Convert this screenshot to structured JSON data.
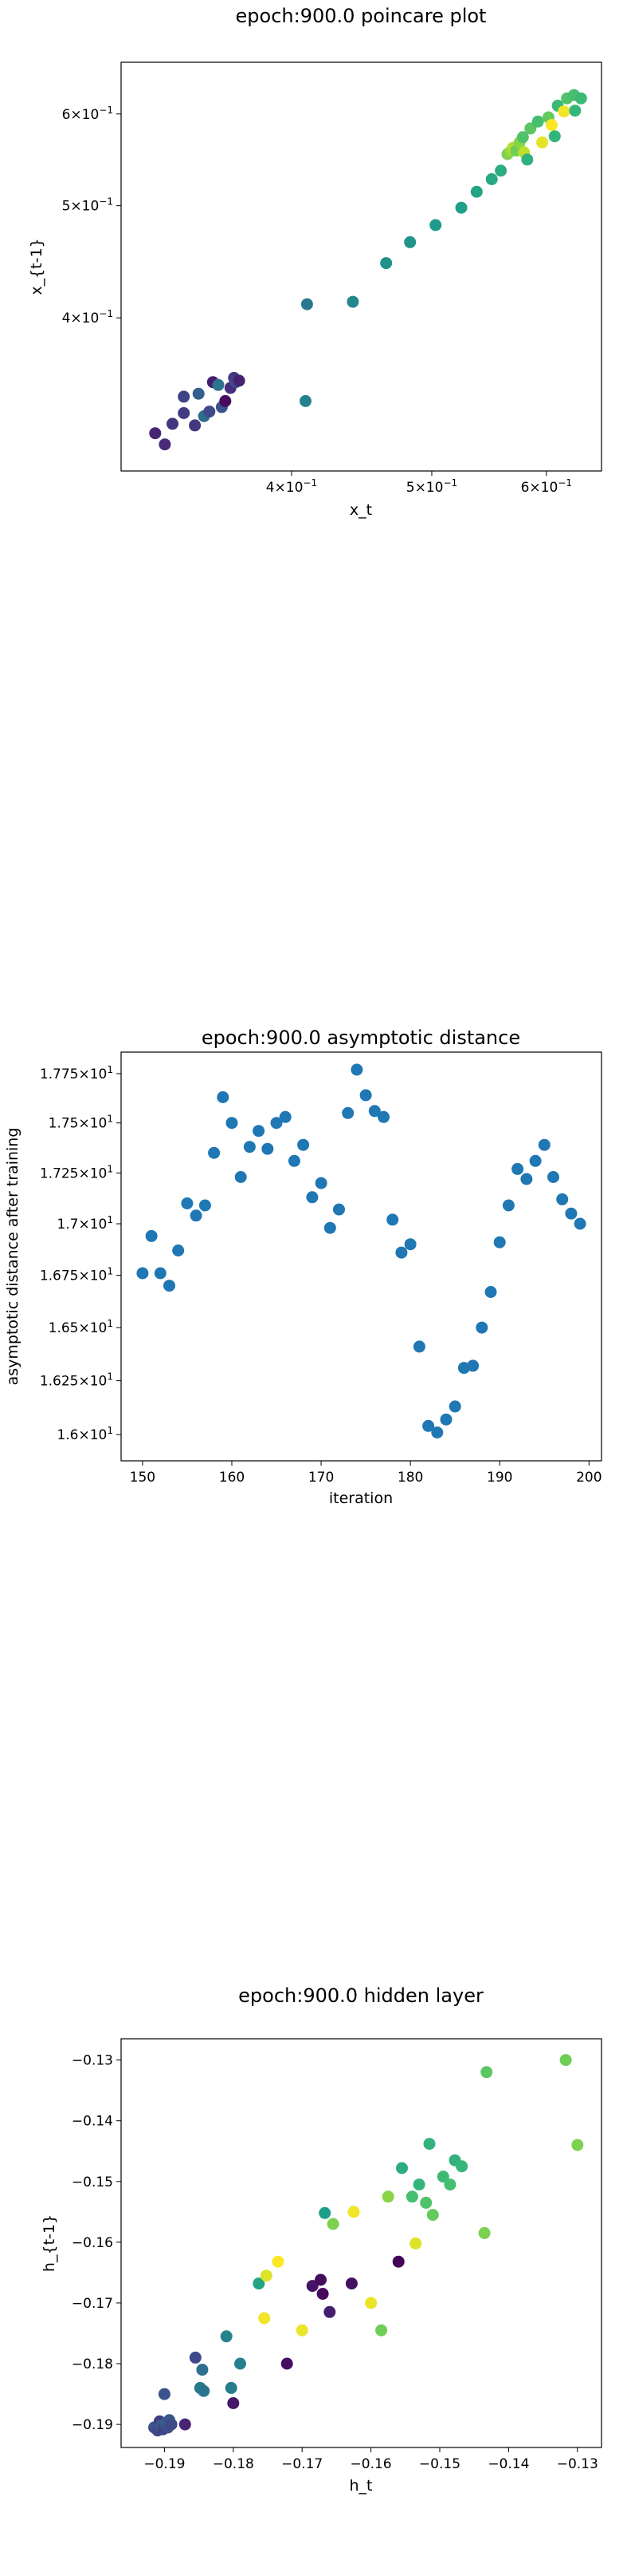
{
  "chart_data": [
    {
      "type": "scatter",
      "title": "epoch:900.0 poincare plot",
      "xlabel": "x_t",
      "ylabel": "x_{t-1}",
      "xscale": "log",
      "yscale": "log",
      "xlim": [
        0.305,
        0.655
      ],
      "ylim": [
        0.295,
        0.665
      ],
      "xticks": [
        {
          "v": 0.4,
          "m": "4",
          "e": "−1"
        },
        {
          "v": 0.5,
          "m": "5",
          "e": "−1"
        },
        {
          "v": 0.6,
          "m": "6",
          "e": "−1"
        }
      ],
      "yticks": [
        {
          "v": 0.4,
          "m": "4",
          "e": "−1"
        },
        {
          "v": 0.5,
          "m": "5",
          "e": "−1"
        },
        {
          "v": 0.6,
          "m": "6",
          "e": "−1"
        }
      ],
      "colormap": "viridis",
      "points": [
        {
          "x": 0.322,
          "y": 0.318,
          "c": 0.1
        },
        {
          "x": 0.327,
          "y": 0.311,
          "c": 0.12
        },
        {
          "x": 0.331,
          "y": 0.324,
          "c": 0.15
        },
        {
          "x": 0.337,
          "y": 0.331,
          "c": 0.18
        },
        {
          "x": 0.337,
          "y": 0.342,
          "c": 0.2
        },
        {
          "x": 0.343,
          "y": 0.323,
          "c": 0.16
        },
        {
          "x": 0.345,
          "y": 0.344,
          "c": 0.3
        },
        {
          "x": 0.348,
          "y": 0.329,
          "c": 0.35
        },
        {
          "x": 0.351,
          "y": 0.332,
          "c": 0.22
        },
        {
          "x": 0.353,
          "y": 0.352,
          "c": 0.08
        },
        {
          "x": 0.356,
          "y": 0.35,
          "c": 0.38
        },
        {
          "x": 0.358,
          "y": 0.335,
          "c": 0.26
        },
        {
          "x": 0.36,
          "y": 0.339,
          "c": 0.03
        },
        {
          "x": 0.363,
          "y": 0.348,
          "c": 0.13
        },
        {
          "x": 0.365,
          "y": 0.355,
          "c": 0.17
        },
        {
          "x": 0.366,
          "y": 0.352,
          "c": 0.22
        },
        {
          "x": 0.368,
          "y": 0.353,
          "c": 0.09
        },
        {
          "x": 0.41,
          "y": 0.411,
          "c": 0.4
        },
        {
          "x": 0.409,
          "y": 0.339,
          "c": 0.44
        },
        {
          "x": 0.441,
          "y": 0.413,
          "c": 0.46
        },
        {
          "x": 0.465,
          "y": 0.446,
          "c": 0.5
        },
        {
          "x": 0.483,
          "y": 0.465,
          "c": 0.52
        },
        {
          "x": 0.503,
          "y": 0.481,
          "c": 0.54
        },
        {
          "x": 0.524,
          "y": 0.498,
          "c": 0.56
        },
        {
          "x": 0.537,
          "y": 0.514,
          "c": 0.58
        },
        {
          "x": 0.55,
          "y": 0.527,
          "c": 0.6
        },
        {
          "x": 0.558,
          "y": 0.536,
          "c": 0.62
        },
        {
          "x": 0.564,
          "y": 0.554,
          "c": 0.8
        },
        {
          "x": 0.567,
          "y": 0.557,
          "c": 0.84
        },
        {
          "x": 0.569,
          "y": 0.561,
          "c": 0.88
        },
        {
          "x": 0.572,
          "y": 0.558,
          "c": 0.78
        },
        {
          "x": 0.575,
          "y": 0.567,
          "c": 0.82
        },
        {
          "x": 0.578,
          "y": 0.573,
          "c": 0.72
        },
        {
          "x": 0.579,
          "y": 0.556,
          "c": 0.9
        },
        {
          "x": 0.582,
          "y": 0.548,
          "c": 0.64
        },
        {
          "x": 0.585,
          "y": 0.583,
          "c": 0.74
        },
        {
          "x": 0.592,
          "y": 0.591,
          "c": 0.7
        },
        {
          "x": 0.596,
          "y": 0.567,
          "c": 0.96
        },
        {
          "x": 0.602,
          "y": 0.596,
          "c": 0.76
        },
        {
          "x": 0.605,
          "y": 0.587,
          "c": 1.0
        },
        {
          "x": 0.608,
          "y": 0.574,
          "c": 0.66
        },
        {
          "x": 0.611,
          "y": 0.61,
          "c": 0.68
        },
        {
          "x": 0.617,
          "y": 0.603,
          "c": 0.98
        },
        {
          "x": 0.62,
          "y": 0.619,
          "c": 0.72
        },
        {
          "x": 0.627,
          "y": 0.623,
          "c": 0.7
        },
        {
          "x": 0.628,
          "y": 0.604,
          "c": 0.66
        },
        {
          "x": 0.634,
          "y": 0.619,
          "c": 0.68
        }
      ]
    },
    {
      "type": "scatter",
      "title": "epoch:900.0 asymptotic distance",
      "xlabel": "iteration",
      "ylabel": "asymptotic distance after training",
      "yscale": "log",
      "xlim": [
        147.6,
        201.4
      ],
      "ylim": [
        15.88,
        17.86
      ],
      "color": "#1f77b4",
      "xticks": [
        {
          "v": 150,
          "t": "150"
        },
        {
          "v": 160,
          "t": "160"
        },
        {
          "v": 170,
          "t": "170"
        },
        {
          "v": 180,
          "t": "180"
        },
        {
          "v": 190,
          "t": "190"
        },
        {
          "v": 200,
          "t": "200"
        }
      ],
      "yticks": [
        {
          "v": 16.0,
          "m": "1.6",
          "e": "1"
        },
        {
          "v": 16.25,
          "m": "1.625",
          "e": "1"
        },
        {
          "v": 16.5,
          "m": "1.65",
          "e": "1"
        },
        {
          "v": 16.75,
          "m": "1.675",
          "e": "1"
        },
        {
          "v": 17.0,
          "m": "1.7",
          "e": "1"
        },
        {
          "v": 17.25,
          "m": "1.725",
          "e": "1"
        },
        {
          "v": 17.5,
          "m": "1.75",
          "e": "1"
        },
        {
          "v": 17.75,
          "m": "1.775",
          "e": "1"
        }
      ],
      "points": [
        {
          "x": 150,
          "y": 16.76
        },
        {
          "x": 151,
          "y": 16.94
        },
        {
          "x": 152,
          "y": 16.76
        },
        {
          "x": 153,
          "y": 16.7
        },
        {
          "x": 154,
          "y": 16.87
        },
        {
          "x": 155,
          "y": 17.1
        },
        {
          "x": 156,
          "y": 17.04
        },
        {
          "x": 157,
          "y": 17.09
        },
        {
          "x": 158,
          "y": 17.35
        },
        {
          "x": 159,
          "y": 17.63
        },
        {
          "x": 160,
          "y": 17.5
        },
        {
          "x": 161,
          "y": 17.23
        },
        {
          "x": 162,
          "y": 17.38
        },
        {
          "x": 163,
          "y": 17.46
        },
        {
          "x": 164,
          "y": 17.37
        },
        {
          "x": 165,
          "y": 17.5
        },
        {
          "x": 166,
          "y": 17.53
        },
        {
          "x": 167,
          "y": 17.31
        },
        {
          "x": 168,
          "y": 17.39
        },
        {
          "x": 169,
          "y": 17.13
        },
        {
          "x": 170,
          "y": 17.2
        },
        {
          "x": 171,
          "y": 16.98
        },
        {
          "x": 172,
          "y": 17.07
        },
        {
          "x": 173,
          "y": 17.55
        },
        {
          "x": 174,
          "y": 17.77
        },
        {
          "x": 175,
          "y": 17.64
        },
        {
          "x": 176,
          "y": 17.56
        },
        {
          "x": 177,
          "y": 17.53
        },
        {
          "x": 178,
          "y": 17.02
        },
        {
          "x": 179,
          "y": 16.86
        },
        {
          "x": 180,
          "y": 16.9
        },
        {
          "x": 181,
          "y": 16.41
        },
        {
          "x": 182,
          "y": 16.04
        },
        {
          "x": 183,
          "y": 16.01
        },
        {
          "x": 184,
          "y": 16.07
        },
        {
          "x": 185,
          "y": 16.13
        },
        {
          "x": 186,
          "y": 16.31
        },
        {
          "x": 187,
          "y": 16.32
        },
        {
          "x": 188,
          "y": 16.5
        },
        {
          "x": 189,
          "y": 16.67
        },
        {
          "x": 190,
          "y": 16.91
        },
        {
          "x": 191,
          "y": 17.09
        },
        {
          "x": 192,
          "y": 17.27
        },
        {
          "x": 193,
          "y": 17.22
        },
        {
          "x": 194,
          "y": 17.31
        },
        {
          "x": 195,
          "y": 17.39
        },
        {
          "x": 196,
          "y": 17.23
        },
        {
          "x": 197,
          "y": 17.12
        },
        {
          "x": 198,
          "y": 17.05
        },
        {
          "x": 199,
          "y": 17.0
        }
      ]
    },
    {
      "type": "scatter",
      "title": "epoch:900.0 hidden layer",
      "xlabel": "h_t",
      "ylabel": "h_{t-1}",
      "xlim": [
        -0.1963,
        -0.1265
      ],
      "ylim": [
        -0.1938,
        -0.1265
      ],
      "colormap": "viridis",
      "xticks": [
        {
          "v": -0.19,
          "t": "−0.19"
        },
        {
          "v": -0.18,
          "t": "−0.18"
        },
        {
          "v": -0.17,
          "t": "−0.17"
        },
        {
          "v": -0.16,
          "t": "−0.16"
        },
        {
          "v": -0.15,
          "t": "−0.15"
        },
        {
          "v": -0.14,
          "t": "−0.14"
        },
        {
          "v": -0.13,
          "t": "−0.13"
        }
      ],
      "yticks": [
        {
          "v": -0.19,
          "t": "−0.19"
        },
        {
          "v": -0.18,
          "t": "−0.18"
        },
        {
          "v": -0.17,
          "t": "−0.17"
        },
        {
          "v": -0.16,
          "t": "−0.16"
        },
        {
          "v": -0.15,
          "t": "−0.15"
        },
        {
          "v": -0.14,
          "t": "−0.14"
        },
        {
          "v": -0.13,
          "t": "−0.13"
        }
      ],
      "points": [
        {
          "x": -0.1915,
          "y": -0.1905,
          "c": 0.25
        },
        {
          "x": -0.191,
          "y": -0.191,
          "c": 0.22
        },
        {
          "x": -0.1907,
          "y": -0.1895,
          "c": 0.18
        },
        {
          "x": -0.1905,
          "y": -0.1902,
          "c": 0.28
        },
        {
          "x": -0.1902,
          "y": -0.1908,
          "c": 0.2
        },
        {
          "x": -0.19,
          "y": -0.185,
          "c": 0.26
        },
        {
          "x": -0.1898,
          "y": -0.1898,
          "c": 0.3
        },
        {
          "x": -0.1895,
          "y": -0.1905,
          "c": 0.24
        },
        {
          "x": -0.1893,
          "y": -0.1893,
          "c": 0.27
        },
        {
          "x": -0.189,
          "y": -0.19,
          "c": 0.23
        },
        {
          "x": -0.187,
          "y": -0.19,
          "c": 0.1
        },
        {
          "x": -0.1855,
          "y": -0.179,
          "c": 0.22
        },
        {
          "x": -0.1848,
          "y": -0.184,
          "c": 0.4
        },
        {
          "x": -0.1845,
          "y": -0.181,
          "c": 0.36
        },
        {
          "x": -0.1843,
          "y": -0.1845,
          "c": 0.38
        },
        {
          "x": -0.181,
          "y": -0.1755,
          "c": 0.45
        },
        {
          "x": -0.1803,
          "y": -0.184,
          "c": 0.42
        },
        {
          "x": -0.18,
          "y": -0.1865,
          "c": 0.06
        },
        {
          "x": -0.179,
          "y": -0.18,
          "c": 0.44
        },
        {
          "x": -0.1763,
          "y": -0.1668,
          "c": 0.58
        },
        {
          "x": -0.1755,
          "y": -0.1725,
          "c": 0.98
        },
        {
          "x": -0.1752,
          "y": -0.1655,
          "c": 0.95
        },
        {
          "x": -0.1735,
          "y": -0.1632,
          "c": 1.0
        },
        {
          "x": -0.1722,
          "y": -0.18,
          "c": 0.04
        },
        {
          "x": -0.17,
          "y": -0.1745,
          "c": 0.97
        },
        {
          "x": -0.1685,
          "y": -0.1672,
          "c": 0.05
        },
        {
          "x": -0.1673,
          "y": -0.1662,
          "c": 0.03
        },
        {
          "x": -0.167,
          "y": -0.1685,
          "c": 0.02
        },
        {
          "x": -0.1667,
          "y": -0.1552,
          "c": 0.55
        },
        {
          "x": -0.166,
          "y": -0.1715,
          "c": 0.08
        },
        {
          "x": -0.1655,
          "y": -0.157,
          "c": 0.8
        },
        {
          "x": -0.1628,
          "y": -0.1668,
          "c": 0.04
        },
        {
          "x": -0.1625,
          "y": -0.155,
          "c": 0.98
        },
        {
          "x": -0.16,
          "y": -0.17,
          "c": 0.97
        },
        {
          "x": -0.1585,
          "y": -0.1745,
          "c": 0.78
        },
        {
          "x": -0.1575,
          "y": -0.1525,
          "c": 0.82
        },
        {
          "x": -0.156,
          "y": -0.1632,
          "c": 0.01
        },
        {
          "x": -0.1555,
          "y": -0.1478,
          "c": 0.62
        },
        {
          "x": -0.154,
          "y": -0.1525,
          "c": 0.7
        },
        {
          "x": -0.1535,
          "y": -0.1602,
          "c": 0.95
        },
        {
          "x": -0.153,
          "y": -0.1505,
          "c": 0.66
        },
        {
          "x": -0.152,
          "y": -0.1535,
          "c": 0.72
        },
        {
          "x": -0.1515,
          "y": -0.1438,
          "c": 0.65
        },
        {
          "x": -0.151,
          "y": -0.1555,
          "c": 0.76
        },
        {
          "x": -0.1495,
          "y": -0.1492,
          "c": 0.68
        },
        {
          "x": -0.1485,
          "y": -0.1505,
          "c": 0.7
        },
        {
          "x": -0.1478,
          "y": -0.1465,
          "c": 0.64
        },
        {
          "x": -0.1468,
          "y": -0.1475,
          "c": 0.66
        },
        {
          "x": -0.1435,
          "y": -0.1585,
          "c": 0.8
        },
        {
          "x": -0.1432,
          "y": -0.132,
          "c": 0.74
        },
        {
          "x": -0.1317,
          "y": -0.13,
          "c": 0.78
        },
        {
          "x": -0.13,
          "y": -0.144,
          "c": 0.8
        }
      ]
    }
  ]
}
